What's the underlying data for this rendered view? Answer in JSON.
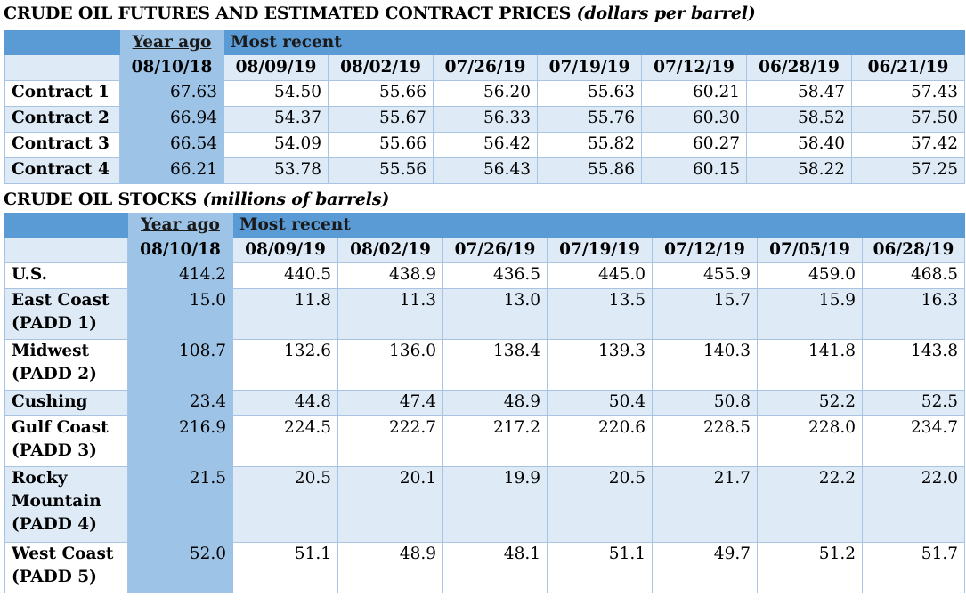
{
  "futures": {
    "title": "CRUDE OIL FUTURES AND ESTIMATED CONTRACT PRICES",
    "unit": "(dollars per barrel)",
    "year_ago_label": "Year ago",
    "most_recent_label": "Most recent",
    "dates": [
      "08/10/18",
      "08/09/19",
      "08/02/19",
      "07/26/19",
      "07/19/19",
      "07/12/19",
      "06/28/19",
      "06/21/19"
    ],
    "rows": [
      {
        "label": "Contract 1",
        "values": [
          "67.63",
          "54.50",
          "55.66",
          "56.20",
          "55.63",
          "60.21",
          "58.47",
          "57.43"
        ]
      },
      {
        "label": "Contract 2",
        "values": [
          "66.94",
          "54.37",
          "55.67",
          "56.33",
          "55.76",
          "60.30",
          "58.52",
          "57.50"
        ]
      },
      {
        "label": "Contract 3",
        "values": [
          "66.54",
          "54.09",
          "55.66",
          "56.42",
          "55.82",
          "60.27",
          "58.40",
          "57.42"
        ]
      },
      {
        "label": "Contract 4",
        "values": [
          "66.21",
          "53.78",
          "55.56",
          "56.43",
          "55.86",
          "60.15",
          "58.22",
          "57.25"
        ]
      }
    ]
  },
  "stocks": {
    "title": "CRUDE OIL STOCKS",
    "unit": "(millions of barrels)",
    "year_ago_label": "Year ago",
    "most_recent_label": "Most recent",
    "dates": [
      "08/10/18",
      "08/09/19",
      "08/02/19",
      "07/26/19",
      "07/19/19",
      "07/12/19",
      "07/05/19",
      "06/28/19"
    ],
    "rows": [
      {
        "label": "U.S.",
        "values": [
          "414.2",
          "440.5",
          "438.9",
          "436.5",
          "445.0",
          "455.9",
          "459.0",
          "468.5"
        ]
      },
      {
        "label": "East Coast (PADD 1)",
        "values": [
          "15.0",
          "11.8",
          "11.3",
          "13.0",
          "13.5",
          "15.7",
          "15.9",
          "16.3"
        ]
      },
      {
        "label": "Midwest (PADD 2)",
        "values": [
          "108.7",
          "132.6",
          "136.0",
          "138.4",
          "139.3",
          "140.3",
          "141.8",
          "143.8"
        ]
      },
      {
        "label": "Cushing",
        "values": [
          "23.4",
          "44.8",
          "47.4",
          "48.9",
          "50.4",
          "50.8",
          "52.2",
          "52.5"
        ]
      },
      {
        "label": "Gulf Coast (PADD 3)",
        "values": [
          "216.9",
          "224.5",
          "222.7",
          "217.2",
          "220.6",
          "228.5",
          "228.0",
          "234.7"
        ]
      },
      {
        "label": "Rocky Mountain (PADD 4)",
        "values": [
          "21.5",
          "20.5",
          "20.1",
          "19.9",
          "20.5",
          "21.7",
          "22.2",
          "22.0"
        ]
      },
      {
        "label": "West Coast (PADD 5)",
        "values": [
          "52.0",
          "51.1",
          "48.9",
          "48.1",
          "51.1",
          "49.7",
          "51.2",
          "51.7"
        ]
      }
    ]
  }
}
